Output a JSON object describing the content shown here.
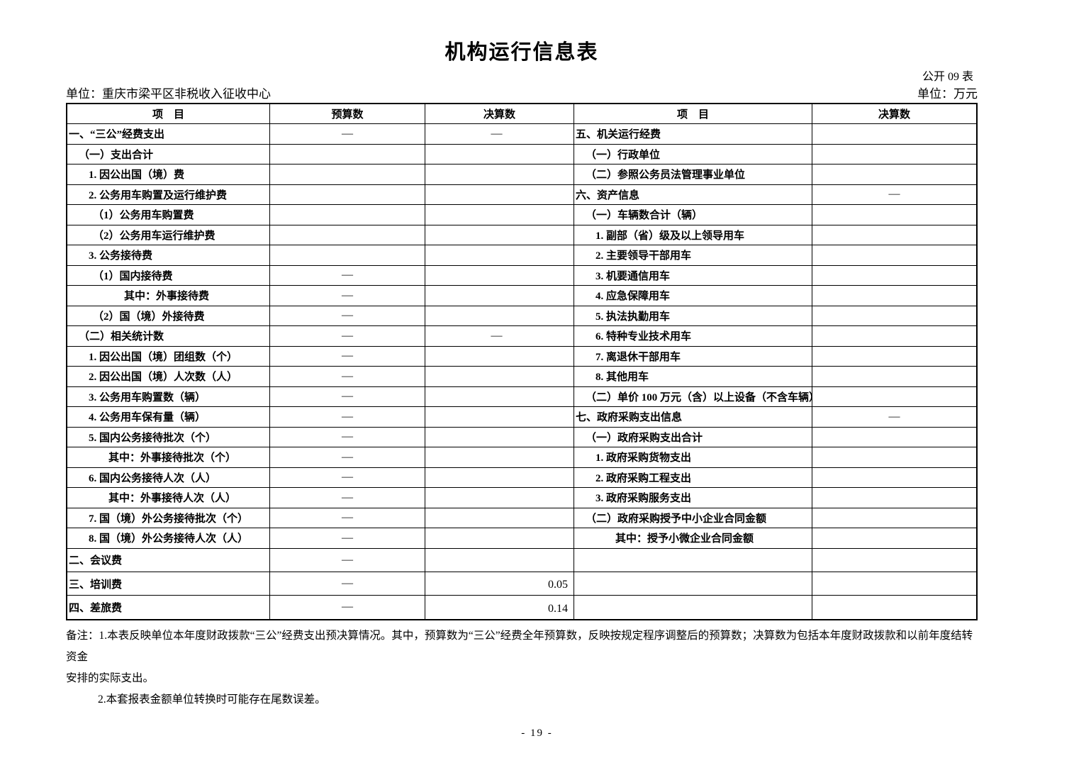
{
  "page": {
    "title": "机构运行信息表",
    "doc_label": "公开 09 表",
    "unit_left": "单位：重庆市梁平区非税收入征收中心",
    "unit_right": "单位：万元",
    "page_number": "- 19 -"
  },
  "table": {
    "headers": {
      "item_left": "项　目",
      "budget": "预算数",
      "final_left": "决算数",
      "item_right": "项　目",
      "final_right": "决算数"
    },
    "left_rows": [
      {
        "label": "一、“三公”经费支出",
        "indent": 0,
        "budget": "—",
        "final": "—"
      },
      {
        "label": "（一）支出合计",
        "indent": 1,
        "budget": "",
        "final": ""
      },
      {
        "label": "1. 因公出国（境）费",
        "indent": 2,
        "budget": "",
        "final": ""
      },
      {
        "label": "2. 公务用车购置及运行维护费",
        "indent": 2,
        "budget": "",
        "final": ""
      },
      {
        "label": "（1）公务用车购置费",
        "indent": 3,
        "budget": "",
        "final": ""
      },
      {
        "label": "（2）公务用车运行维护费",
        "indent": 3,
        "budget": "",
        "final": ""
      },
      {
        "label": "3. 公务接待费",
        "indent": 2,
        "budget": "",
        "final": ""
      },
      {
        "label": "（1）国内接待费",
        "indent": 3,
        "budget": "—",
        "final": ""
      },
      {
        "label": "其中：外事接待费",
        "indent": 5,
        "budget": "—",
        "final": ""
      },
      {
        "label": "（2）国（境）外接待费",
        "indent": 3,
        "budget": "—",
        "final": ""
      },
      {
        "label": "（二）相关统计数",
        "indent": 1,
        "budget": "—",
        "final": "—"
      },
      {
        "label": "1. 因公出国（境）团组数（个）",
        "indent": 2,
        "budget": "—",
        "final": ""
      },
      {
        "label": "2. 因公出国（境）人次数（人）",
        "indent": 2,
        "budget": "—",
        "final": ""
      },
      {
        "label": "3. 公务用车购置数（辆）",
        "indent": 2,
        "budget": "—",
        "final": ""
      },
      {
        "label": "4. 公务用车保有量（辆）",
        "indent": 2,
        "budget": "—",
        "final": ""
      },
      {
        "label": "5. 国内公务接待批次（个）",
        "indent": 2,
        "budget": "—",
        "final": ""
      },
      {
        "label": "其中：外事接待批次（个）",
        "indent": 4,
        "budget": "—",
        "final": ""
      },
      {
        "label": "6. 国内公务接待人次（人）",
        "indent": 2,
        "budget": "—",
        "final": ""
      },
      {
        "label": "其中：外事接待人次（人）",
        "indent": 4,
        "budget": "—",
        "final": ""
      },
      {
        "label": "7. 国（境）外公务接待批次（个）",
        "indent": 2,
        "budget": "—",
        "final": ""
      },
      {
        "label": "8. 国（境）外公务接待人次（人）",
        "indent": 2,
        "budget": "—",
        "final": ""
      },
      {
        "label": "二、会议费",
        "indent": 0,
        "budget": "—",
        "final": ""
      },
      {
        "label": "三、培训费",
        "indent": 0,
        "budget": "—",
        "final": "0.05"
      },
      {
        "label": "四、差旅费",
        "indent": 0,
        "budget": "—",
        "final": "0.14"
      }
    ],
    "right_rows": [
      {
        "label": "五、机关运行经费",
        "indent": 0,
        "final": ""
      },
      {
        "label": "（一）行政单位",
        "indent": 1,
        "final": ""
      },
      {
        "label": "（二）参照公务员法管理事业单位",
        "indent": 1,
        "final": ""
      },
      {
        "label": "六、资产信息",
        "indent": 0,
        "final": "—"
      },
      {
        "label": "（一）车辆数合计（辆）",
        "indent": 1,
        "final": ""
      },
      {
        "label": "1. 副部（省）级及以上领导用车",
        "indent": 2,
        "final": ""
      },
      {
        "label": "2. 主要领导干部用车",
        "indent": 2,
        "final": ""
      },
      {
        "label": "3. 机要通信用车",
        "indent": 2,
        "final": ""
      },
      {
        "label": "4. 应急保障用车",
        "indent": 2,
        "final": ""
      },
      {
        "label": "5. 执法执勤用车",
        "indent": 2,
        "final": ""
      },
      {
        "label": "6. 特种专业技术用车",
        "indent": 2,
        "final": ""
      },
      {
        "label": "7. 离退休干部用车",
        "indent": 2,
        "final": ""
      },
      {
        "label": "8. 其他用车",
        "indent": 2,
        "final": ""
      },
      {
        "label": "（二）单价 100 万元（含）以上设备（不含车辆）",
        "indent": 1,
        "final": ""
      },
      {
        "label": "七、政府采购支出信息",
        "indent": 0,
        "final": "—"
      },
      {
        "label": "（一）政府采购支出合计",
        "indent": 1,
        "final": ""
      },
      {
        "label": "1. 政府采购货物支出",
        "indent": 2,
        "final": ""
      },
      {
        "label": "2. 政府采购工程支出",
        "indent": 2,
        "final": ""
      },
      {
        "label": "3. 政府采购服务支出",
        "indent": 2,
        "final": ""
      },
      {
        "label": "（二）政府采购授予中小企业合同金额",
        "indent": 1,
        "final": ""
      },
      {
        "label": "其中：授予小微企业合同金额",
        "indent": 4,
        "final": ""
      },
      {
        "label": "",
        "indent": 0,
        "final": ""
      },
      {
        "label": "",
        "indent": 0,
        "final": ""
      },
      {
        "label": "",
        "indent": 0,
        "final": ""
      }
    ]
  },
  "notes": {
    "line1": "备注：1.本表反映单位本年度财政拨款“三公”经费支出预决算情况。其中，预算数为“三公”经费全年预算数，反映按规定程序调整后的预算数；决算数为包括本年度财政拨款和以前年度结转资金",
    "line2": "安排的实际支出。",
    "line3": "2.本套报表金额单位转换时可能存在尾数误差。"
  },
  "colors": {
    "text": "#000000",
    "border": "#000000",
    "background": "#ffffff"
  }
}
